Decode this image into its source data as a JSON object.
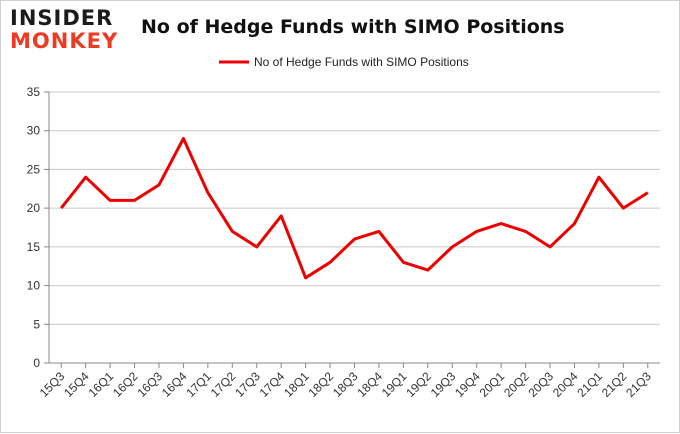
{
  "logo": {
    "top": "INSIDER",
    "bottom": "MONKEY"
  },
  "chart_data": {
    "type": "line",
    "title": "No of Hedge Funds with SIMO Positions",
    "xlabel": "",
    "ylabel": "",
    "categories": [
      "15Q3",
      "15Q4",
      "16Q1",
      "16Q2",
      "16Q3",
      "16Q4",
      "17Q1",
      "17Q2",
      "17Q3",
      "17Q4",
      "18Q1",
      "18Q2",
      "18Q3",
      "18Q4",
      "19Q1",
      "19Q2",
      "19Q3",
      "19Q4",
      "20Q1",
      "20Q2",
      "20Q3",
      "20Q4",
      "21Q1",
      "21Q2",
      "21Q3"
    ],
    "series": [
      {
        "name": "No of Hedge Funds with SIMO Positions",
        "color": "#ee0000",
        "values": [
          20,
          24,
          21,
          21,
          23,
          29,
          22,
          17,
          15,
          19,
          11,
          13,
          16,
          17,
          13,
          12,
          15,
          17,
          18,
          17,
          15,
          18,
          24,
          20,
          22
        ]
      }
    ],
    "ylim": [
      0,
      35
    ],
    "yticks": [
      0,
      5,
      10,
      15,
      20,
      25,
      30,
      35
    ],
    "grid": true,
    "legend": "top-center"
  }
}
